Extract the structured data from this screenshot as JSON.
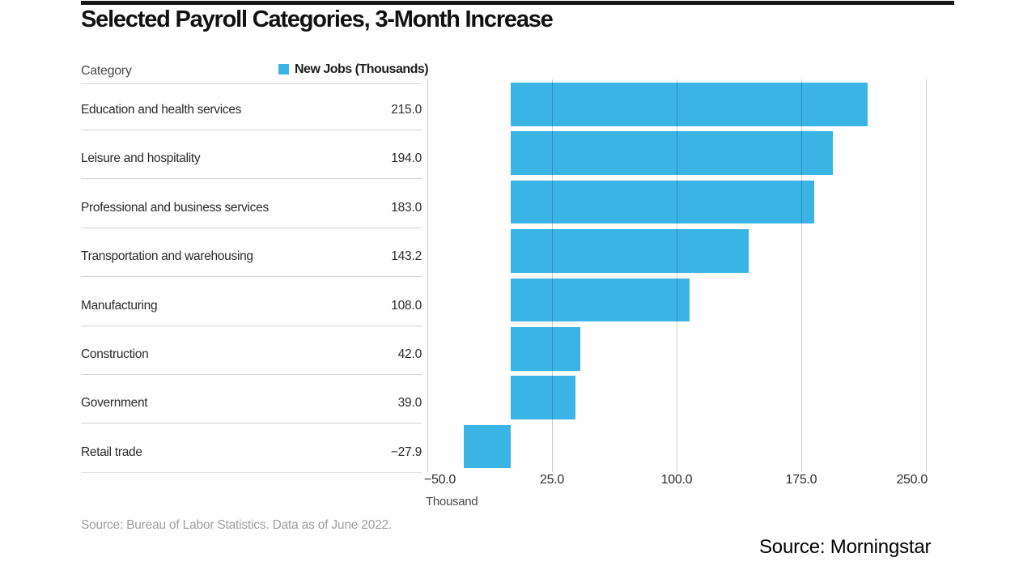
{
  "title": "Selected Payroll Categories, 3-Month Increase",
  "table": {
    "category_header": "Category"
  },
  "legend": {
    "label": "New Jobs (Thousands)"
  },
  "chart_data": {
    "type": "bar",
    "orientation": "horizontal",
    "title": "Selected Payroll Categories, 3-Month Increase",
    "legend": "New Jobs (Thousands)",
    "categories": [
      "Education and health services",
      "Leisure and hospitality",
      "Professional and business services",
      "Transportation and warehousing",
      "Manufacturing",
      "Construction",
      "Government",
      "Retail trade"
    ],
    "values": [
      215.0,
      194.0,
      183.0,
      143.2,
      108.0,
      42.0,
      39.0,
      -27.9
    ],
    "value_labels": [
      "215.0",
      "194.0",
      "183.0",
      "143.2",
      "108.0",
      "42.0",
      "39.0",
      "−27.9"
    ],
    "x_ticks": [
      -50,
      25,
      100,
      175,
      250
    ],
    "x_tick_labels": [
      "−50.0",
      "25.0",
      "100.0",
      "175.0",
      "250.0"
    ],
    "xlim": [
      -52.5,
      251
    ],
    "xlabel": "Thousand",
    "grid": "vertical",
    "legend_position": "top",
    "bar_color": "#3AB4E4"
  },
  "footer": {
    "source_note": "Source: Bureau of Labor Statistics. Data as of June 2022.",
    "attribution": "Source: Morningstar"
  }
}
